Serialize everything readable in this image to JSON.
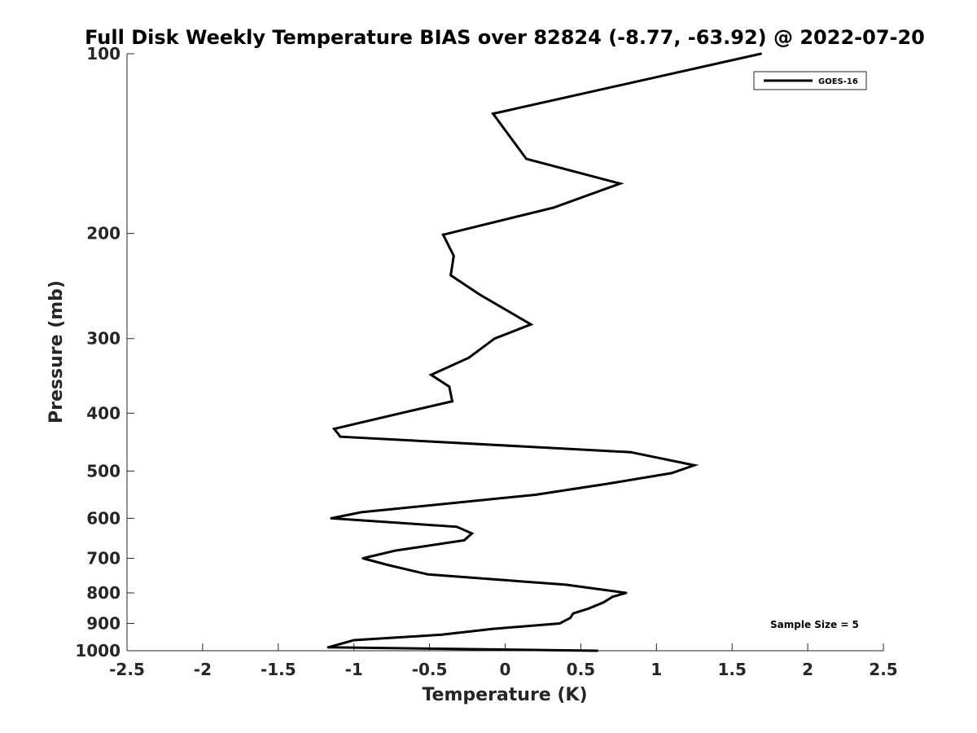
{
  "chart_data": {
    "type": "line",
    "title": "Full Disk Weekly Temperature BIAS over 82824 (-8.77, -63.92) @ 2022-07-20",
    "xlabel": "Temperature (K)",
    "ylabel": "Pressure (mb)",
    "xlim": [
      -2.5,
      2.5
    ],
    "ylim": [
      100,
      1000
    ],
    "y_scale": "log",
    "y_reversed": true,
    "grid": false,
    "legend_position": "top-right",
    "x_ticks": [
      "-2.5",
      "-2",
      "-1.5",
      "-1",
      "-0.5",
      "0",
      "0.5",
      "1",
      "1.5",
      "2",
      "2.5"
    ],
    "y_ticks": [
      "100",
      "200",
      "300",
      "400",
      "500",
      "600",
      "700",
      "800",
      "900",
      "1000"
    ],
    "series": [
      {
        "name": "GOES-16",
        "color": "#000000",
        "points": [
          {
            "x": 1.69,
            "y": 100
          },
          {
            "x": -0.08,
            "y": 126
          },
          {
            "x": 0.14,
            "y": 150
          },
          {
            "x": 0.76,
            "y": 165
          },
          {
            "x": 0.32,
            "y": 181
          },
          {
            "x": -0.41,
            "y": 201
          },
          {
            "x": -0.34,
            "y": 218
          },
          {
            "x": -0.36,
            "y": 235
          },
          {
            "x": -0.17,
            "y": 253
          },
          {
            "x": 0.17,
            "y": 284
          },
          {
            "x": -0.07,
            "y": 300
          },
          {
            "x": -0.24,
            "y": 323
          },
          {
            "x": -0.49,
            "y": 345
          },
          {
            "x": -0.37,
            "y": 361
          },
          {
            "x": -0.35,
            "y": 382
          },
          {
            "x": -0.69,
            "y": 400
          },
          {
            "x": -1.13,
            "y": 425
          },
          {
            "x": -1.09,
            "y": 438
          },
          {
            "x": 0.83,
            "y": 465
          },
          {
            "x": 1.25,
            "y": 489
          },
          {
            "x": 1.1,
            "y": 504
          },
          {
            "x": 0.68,
            "y": 525
          },
          {
            "x": 0.2,
            "y": 548
          },
          {
            "x": -0.95,
            "y": 586
          },
          {
            "x": -1.15,
            "y": 600
          },
          {
            "x": -0.32,
            "y": 620
          },
          {
            "x": -0.22,
            "y": 636
          },
          {
            "x": -0.27,
            "y": 653
          },
          {
            "x": -0.73,
            "y": 680
          },
          {
            "x": -0.94,
            "y": 700
          },
          {
            "x": -0.78,
            "y": 718
          },
          {
            "x": -0.51,
            "y": 745
          },
          {
            "x": 0.4,
            "y": 775
          },
          {
            "x": 0.8,
            "y": 800
          },
          {
            "x": 0.71,
            "y": 812
          },
          {
            "x": 0.65,
            "y": 830
          },
          {
            "x": 0.55,
            "y": 850
          },
          {
            "x": 0.45,
            "y": 866
          },
          {
            "x": 0.43,
            "y": 881
          },
          {
            "x": 0.36,
            "y": 900
          },
          {
            "x": -0.08,
            "y": 919
          },
          {
            "x": -0.42,
            "y": 940
          },
          {
            "x": -1.0,
            "y": 960
          },
          {
            "x": -1.17,
            "y": 987
          },
          {
            "x": 0.61,
            "y": 1000
          }
        ]
      }
    ],
    "annotations": [
      "Sample Size = 5"
    ]
  }
}
